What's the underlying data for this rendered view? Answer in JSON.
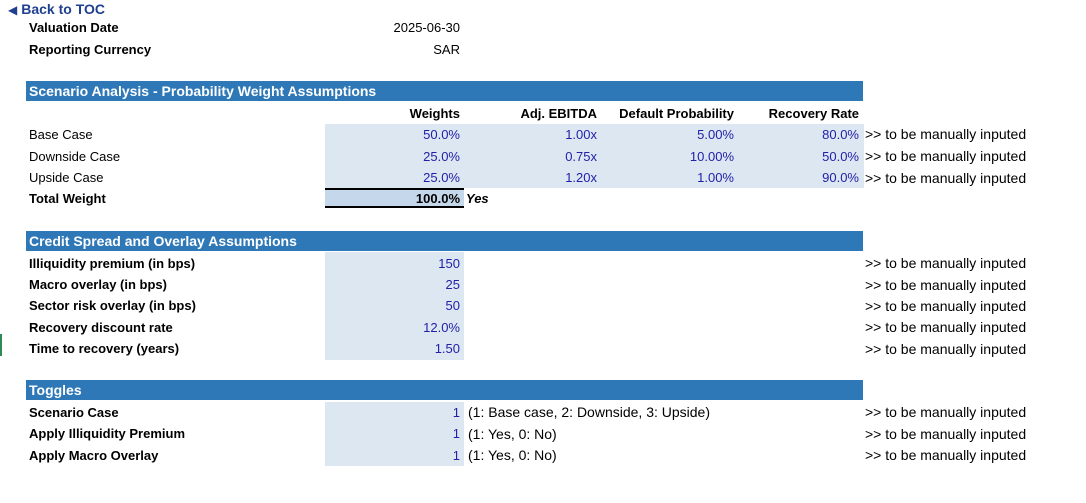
{
  "nav": {
    "back_label": "Back to TOC"
  },
  "header": {
    "valuation_date_label": "Valuation Date",
    "valuation_date_value": "2025-06-30",
    "currency_label": "Reporting Currency",
    "currency_value": "SAR"
  },
  "scenario": {
    "title": "Scenario Analysis - Probability Weight Assumptions",
    "columns": [
      "Weights",
      "Adj. EBITDA",
      "Default Probability",
      "Recovery Rate"
    ],
    "rows": [
      {
        "label": "Base Case",
        "weight": "50.0%",
        "ebitda": "1.00x",
        "pd": "5.00%",
        "recovery": "80.0%",
        "note": ">> to be manually inputed"
      },
      {
        "label": "Downside Case",
        "weight": "25.0%",
        "ebitda": "0.75x",
        "pd": "10.00%",
        "recovery": "50.0%",
        "note": ">> to be manually inputed"
      },
      {
        "label": "Upside Case",
        "weight": "25.0%",
        "ebitda": "1.20x",
        "pd": "1.00%",
        "recovery": "90.0%",
        "note": ">> to be manually inputed"
      }
    ],
    "total_label": "Total Weight",
    "total_value": "100.0%",
    "total_check": "Yes"
  },
  "credit": {
    "title": "Credit Spread and Overlay Assumptions",
    "rows": [
      {
        "label": "Illiquidity premium (in bps)",
        "value": "150",
        "note": ">> to be manually inputed"
      },
      {
        "label": "Macro overlay (in bps)",
        "value": "25",
        "note": ">> to be manually inputed"
      },
      {
        "label": "Sector risk overlay (in bps)",
        "value": "50",
        "note": ">> to be manually inputed"
      },
      {
        "label": "Recovery discount rate",
        "value": "12.0%",
        "note": ">> to be manually inputed"
      },
      {
        "label": "Time to recovery (years)",
        "value": "1.50",
        "note": ">> to be manually inputed"
      }
    ]
  },
  "toggles": {
    "title": "Toggles",
    "rows": [
      {
        "label": "Scenario Case",
        "value": "1",
        "desc": "(1: Base case, 2: Downside, 3: Upside)",
        "note": ">> to be manually inputed"
      },
      {
        "label": "Apply Illiquidity Premium",
        "value": "1",
        "desc": "(1: Yes, 0: No)",
        "note": ">> to be manually inputed"
      },
      {
        "label": "Apply Macro Overlay",
        "value": "1",
        "desc": "(1: Yes, 0: No)",
        "note": ">> to be manually inputed"
      }
    ]
  }
}
